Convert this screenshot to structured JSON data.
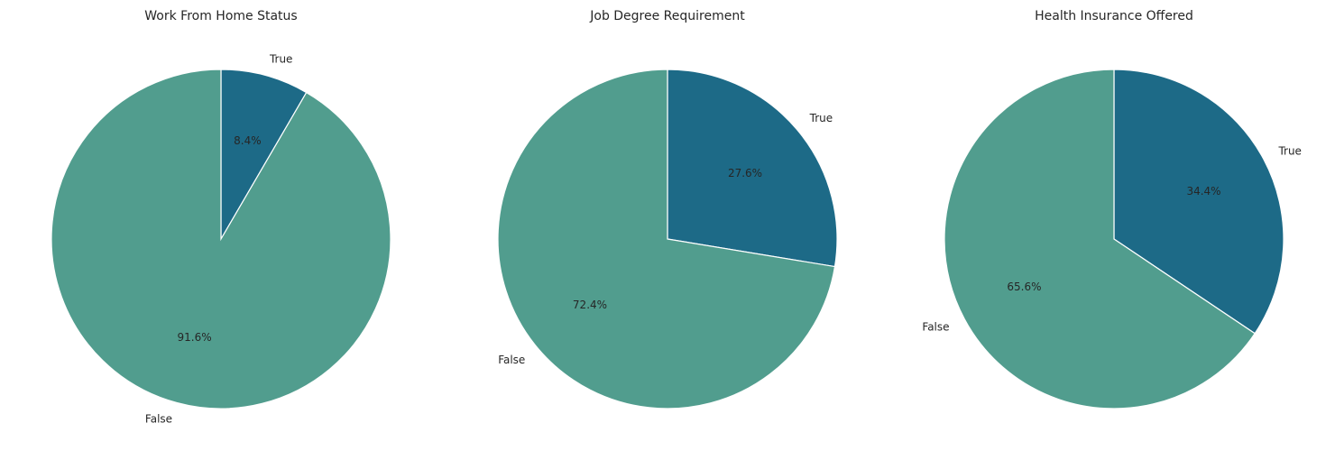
{
  "colors": {
    "true_slice": "#1d6a87",
    "false_slice": "#519d8e",
    "edge": "#ffffff"
  },
  "chart_data": [
    {
      "type": "pie",
      "title": "Work From Home Status",
      "slices": [
        {
          "label": "True",
          "value": 8.4,
          "pct_text": "8.4%"
        },
        {
          "label": "False",
          "value": 91.6,
          "pct_text": "91.6%"
        }
      ]
    },
    {
      "type": "pie",
      "title": "Job Degree Requirement",
      "slices": [
        {
          "label": "True",
          "value": 27.6,
          "pct_text": "27.6%"
        },
        {
          "label": "False",
          "value": 72.4,
          "pct_text": "72.4%"
        }
      ]
    },
    {
      "type": "pie",
      "title": "Health Insurance Offered",
      "slices": [
        {
          "label": "True",
          "value": 34.4,
          "pct_text": "34.4%"
        },
        {
          "label": "False",
          "value": 65.6,
          "pct_text": "65.6%"
        }
      ]
    }
  ]
}
